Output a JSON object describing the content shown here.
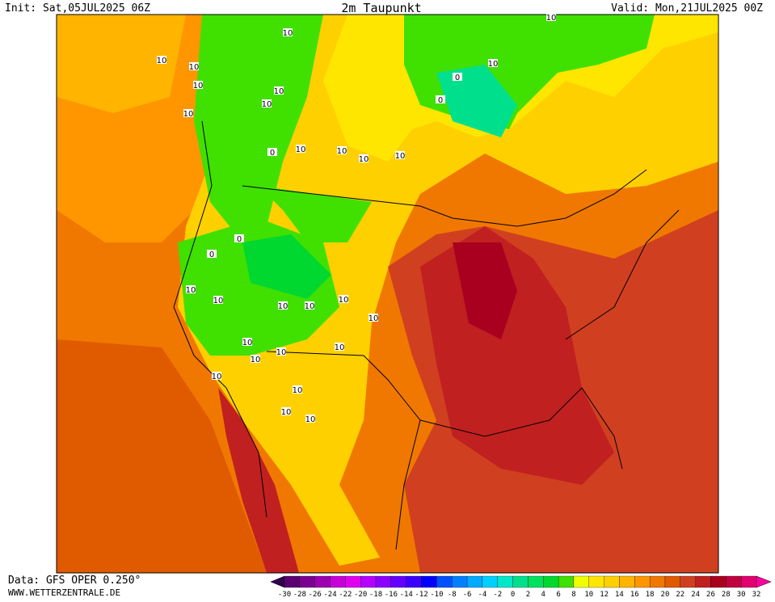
{
  "header": {
    "init": "Init: Sat,05JUL2025 06Z",
    "title": "2m Taupunkt",
    "valid": "Valid: Mon,21JUL2025 00Z"
  },
  "footer": {
    "data": "Data: GFS OPER 0.250°",
    "site": "WWW.WETTERZENTRALE.DE"
  },
  "colorbar": {
    "labels": [
      -30,
      -28,
      -26,
      -24,
      -22,
      -20,
      -18,
      -16,
      -14,
      -12,
      -10,
      -8,
      -6,
      -4,
      -2,
      0,
      2,
      4,
      6,
      8,
      10,
      12,
      14,
      16,
      18,
      20,
      22,
      24,
      26,
      28,
      30,
      32
    ],
    "colors": [
      "#5a0070",
      "#7a0090",
      "#9c00b0",
      "#c800d8",
      "#e000f0",
      "#b400ff",
      "#8c00ff",
      "#6400ff",
      "#3c00ff",
      "#0000ff",
      "#0050ff",
      "#0080ff",
      "#00aaff",
      "#00d0ff",
      "#00e8c8",
      "#00e08c",
      "#00e060",
      "#00d830",
      "#40e000",
      "#f0ff00",
      "#ffe600",
      "#ffd000",
      "#ffb400",
      "#ff9600",
      "#f07800",
      "#e05a00",
      "#d04020",
      "#c02020",
      "#a8001e",
      "#c00040",
      "#e00070"
    ],
    "low_color": "#300050",
    "high_color": "#ff00a0"
  },
  "map": {
    "contour_labels": [
      "10",
      "10",
      "10",
      "10",
      "10",
      "0",
      "0",
      "10",
      "10",
      "10",
      "0",
      "10",
      "10",
      "10",
      "10",
      "10",
      "0",
      "0",
      "10",
      "10",
      "10",
      "10",
      "10",
      "10",
      "10",
      "10",
      "10",
      "10",
      "10",
      "10",
      "10",
      "10"
    ]
  }
}
